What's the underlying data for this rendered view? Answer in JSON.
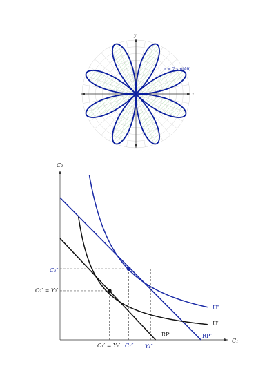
{
  "chart_data": [
    {
      "type": "polar",
      "equation_label": "r = 2 sin(4θ)",
      "function": {
        "amplitude": 2,
        "frequency": 4
      },
      "x_axis_label": "x",
      "y_axis_label": "y",
      "grid": true,
      "colors": {
        "curve": "#0a1e9e",
        "fill_hatch": "#8fd98f",
        "grid": "#cfcfcf"
      }
    },
    {
      "type": "line",
      "xlabel": "C₁",
      "ylabel": "C₂",
      "xlim": [
        0,
        10
      ],
      "ylim": [
        0,
        10
      ],
      "series": [
        {
          "name": "RP′",
          "kind": "line",
          "x": [
            0,
            5.7
          ],
          "y": [
            6,
            0
          ],
          "color": "#111111"
        },
        {
          "name": "RP″",
          "kind": "line",
          "x": [
            0,
            8.4
          ],
          "y": [
            8.4,
            0
          ],
          "color": "#1a2aa6"
        },
        {
          "name": "U′",
          "kind": "hyperbola",
          "x_min": 1.1,
          "x_max": 8.8,
          "k": 8.0,
          "color": "#111111"
        },
        {
          "name": "U″",
          "kind": "hyperbola",
          "x_min": 1.75,
          "x_max": 8.8,
          "k": 17.0,
          "color": "#1a2aa6"
        }
      ],
      "points": [
        {
          "name": "black-tangency",
          "x": 2.95,
          "y": 2.9,
          "color": "#111111"
        },
        {
          "name": "blue-tangency",
          "x": 4.1,
          "y": 4.2,
          "color": "#1a2aa6"
        }
      ],
      "annotations": {
        "c2_double_prime": "C₂″",
        "c2_prime_eq": "C₂′ = Y₂′",
        "c1_prime_eq": "C₁′ = Y₁′",
        "c1_double_prime": "C₁″",
        "y1_double_prime": "Y₁″"
      },
      "vline_extra_x": 5.4,
      "colors": {
        "black": "#111111",
        "blue": "#1a2aa6"
      }
    }
  ]
}
